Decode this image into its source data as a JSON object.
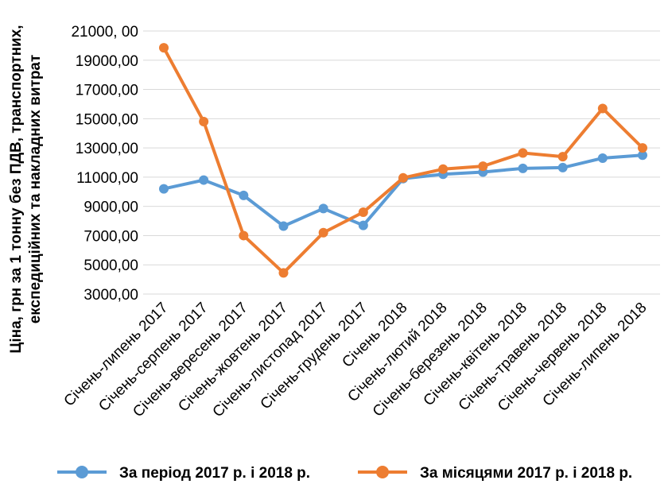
{
  "chart_data": {
    "type": "line",
    "title": "",
    "ylabel_line1": "Ціна, грн за 1 тонну без ПДВ, транспортних,",
    "ylabel_line2": "експедиційних та накладних витрат",
    "xlabel": "",
    "ylim": [
      3000,
      21000
    ],
    "yticks": [
      3000,
      5000,
      7000,
      9000,
      11000,
      13000,
      15000,
      17000,
      19000,
      21000
    ],
    "ytick_labels": [
      "3000,00",
      "5000,00",
      "7000,00",
      "9000,00",
      "11000,00",
      "13000,00",
      "15000,00",
      "17000,00",
      "19000,00",
      "21000, 00"
    ],
    "categories": [
      "Січень-липень 2017",
      "Січень-серпень 2017",
      "Січень-вересень 2017",
      "Січень-жовтень 2017",
      "Січень-листопад 2017",
      "Січень-грудень 2017",
      "Січень 2018",
      "Січень-лютий 2018",
      "Січень-березень 2018",
      "Січень-квітень 2018",
      "Січень-травень 2018",
      "Січень-червень 2018",
      "Січень-липень 2018"
    ],
    "series": [
      {
        "name": "За період 2017 р. і 2018 р.",
        "color": "#5B9BD5",
        "values": [
          10200,
          10800,
          9750,
          7650,
          8850,
          7700,
          10900,
          11200,
          11350,
          11600,
          11650,
          12300,
          12500
        ]
      },
      {
        "name": "За місяцями 2017 р. і 2018 р.",
        "color": "#ED7D31",
        "values": [
          19850,
          14800,
          7000,
          4450,
          7200,
          8600,
          10950,
          11550,
          11750,
          12650,
          12400,
          15700,
          13000
        ]
      }
    ],
    "grid": true,
    "legend_position": "bottom"
  }
}
